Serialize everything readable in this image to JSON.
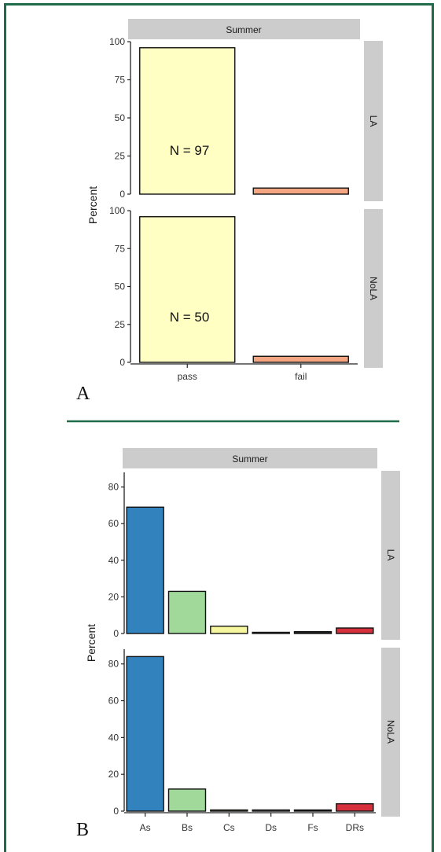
{
  "colors": {
    "frame": "#1f6b4a",
    "divider": "#1f6b4a",
    "strip": "#cccccc",
    "pass": "#ffffc4",
    "fail": "#f4a582",
    "As": "#3182bd",
    "Bs": "#a1d99b",
    "Cs": "#f7f7a0",
    "Ds": "#ffffff",
    "Fs": "#222222",
    "DRs": "#d7303d"
  },
  "chart_data": [
    {
      "panel_label": "A",
      "type": "bar",
      "facet_col": "Summer",
      "ylabel": "Percent",
      "ylim": [
        0,
        100
      ],
      "yticks": [
        "0",
        "25",
        "50",
        "75",
        "100"
      ],
      "categories": [
        "pass",
        "fail"
      ],
      "facets": [
        {
          "row": "LA",
          "values": [
            96,
            4
          ],
          "annotation": "N = 97"
        },
        {
          "row": "NoLA",
          "values": [
            96,
            4
          ],
          "annotation": "N = 50"
        }
      ]
    },
    {
      "panel_label": "B",
      "type": "bar",
      "facet_col": "Summer",
      "ylabel": "Percent",
      "ylim": [
        0,
        88
      ],
      "yticks": [
        "0",
        "20",
        "40",
        "60",
        "80"
      ],
      "categories": [
        "As",
        "Bs",
        "Cs",
        "Ds",
        "Fs",
        "DRs"
      ],
      "facets": [
        {
          "row": "LA",
          "values": [
            69,
            23,
            4,
            0,
            1,
            3
          ]
        },
        {
          "row": "NoLA",
          "values": [
            84,
            12,
            0,
            0,
            0,
            4
          ]
        }
      ]
    }
  ]
}
